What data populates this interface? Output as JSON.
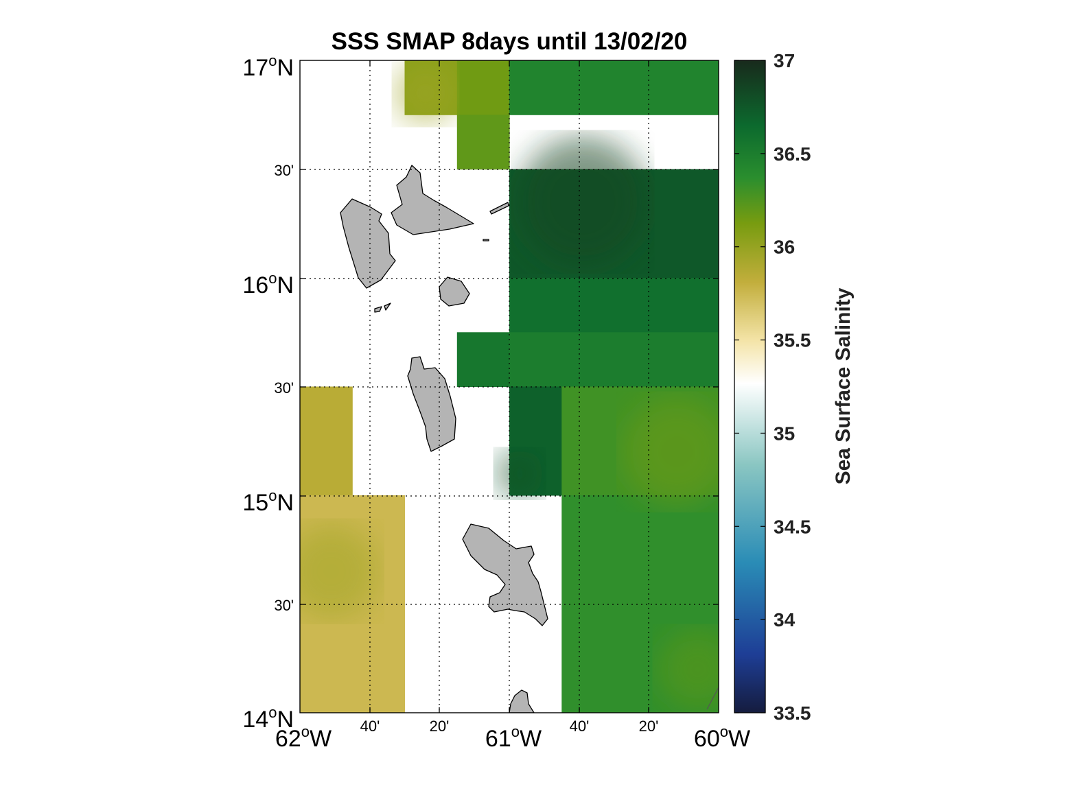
{
  "title": "SSS SMAP 8days until 13/02/20",
  "map": {
    "lon_range": [
      -62,
      -60
    ],
    "lat_range": [
      14,
      17
    ],
    "grid": true,
    "lat_labels": [
      {
        "lat": 17.0,
        "main": "17",
        "sup": "o",
        "suffix": "N",
        "kind": "major"
      },
      {
        "lat": 16.5,
        "text": "30'",
        "kind": "minor"
      },
      {
        "lat": 16.0,
        "main": "16",
        "sup": "o",
        "suffix": "N",
        "kind": "major"
      },
      {
        "lat": 15.5,
        "text": "30'",
        "kind": "minor"
      },
      {
        "lat": 15.0,
        "main": "15",
        "sup": "o",
        "suffix": "N",
        "kind": "major"
      },
      {
        "lat": 14.5,
        "text": "30'",
        "kind": "minor"
      },
      {
        "lat": 14.0,
        "main": "14",
        "sup": "o",
        "suffix": "N",
        "kind": "major"
      }
    ],
    "lon_labels": [
      {
        "lon": -62.0,
        "main": "62",
        "sup": "o",
        "suffix": "W",
        "kind": "major"
      },
      {
        "lon": -61.6667,
        "text": "40'",
        "kind": "minor"
      },
      {
        "lon": -61.3333,
        "text": "20'",
        "kind": "minor"
      },
      {
        "lon": -61.0,
        "main": "61",
        "sup": "o",
        "suffix": "W",
        "kind": "major"
      },
      {
        "lon": -60.6667,
        "text": "40'",
        "kind": "minor"
      },
      {
        "lon": -60.3333,
        "text": "20'",
        "kind": "minor"
      },
      {
        "lon": -60.0,
        "main": "60",
        "sup": "o",
        "suffix": "W",
        "kind": "major"
      }
    ],
    "land_color": "#b4b4b4",
    "no_data_color": "#ffffff"
  },
  "colorbar": {
    "label": "Sea Surface Salinity",
    "min": 33.5,
    "max": 37,
    "ticks": [
      "37",
      "36.5",
      "36",
      "35.5",
      "35",
      "34.5",
      "34",
      "33.5"
    ],
    "colors": [
      "#151c3e",
      "#1e3e96",
      "#2a8cb6",
      "#8ac6c2",
      "#ffffff",
      "#f4e4a8",
      "#c2ae3c",
      "#789c10",
      "#2a8e2e",
      "#0c6a2e",
      "#182a1c"
    ]
  },
  "chart_data": {
    "type": "heatmap",
    "title": "SSS SMAP 8days until 13/02/20",
    "xlabel": "",
    "ylabel": "",
    "x_range": [
      -62,
      -60
    ],
    "y_range": [
      14,
      17
    ],
    "value_label": "Sea Surface Salinity",
    "value_range": [
      33.5,
      37
    ],
    "cells": [
      {
        "lon": [
          -61.5,
          -61.25
        ],
        "lat": [
          16.75,
          17.0
        ],
        "value": 36.05
      },
      {
        "lon": [
          -61.25,
          -61.0
        ],
        "lat": [
          16.75,
          17.0
        ],
        "value": 36.15
      },
      {
        "lon": [
          -61.0,
          -60.0
        ],
        "lat": [
          16.75,
          17.0
        ],
        "value": 36.45
      },
      {
        "lon": [
          -61.25,
          -61.0
        ],
        "lat": [
          16.5,
          16.75
        ],
        "value": 36.2
      },
      {
        "lon": [
          -61.0,
          -60.0
        ],
        "lat": [
          16.0,
          16.5
        ],
        "value": 36.75
      },
      {
        "lon": [
          -61.0,
          -60.0
        ],
        "lat": [
          15.75,
          16.0
        ],
        "value": 36.6
      },
      {
        "lon": [
          -61.25,
          -61.0
        ],
        "lat": [
          15.5,
          15.75
        ],
        "value": 36.55
      },
      {
        "lon": [
          -61.0,
          -60.0
        ],
        "lat": [
          15.5,
          15.75
        ],
        "value": 36.5
      },
      {
        "lon": [
          -61.0,
          -60.75
        ],
        "lat": [
          15.0,
          15.5
        ],
        "value": 36.7
      },
      {
        "lon": [
          -60.75,
          -60.0
        ],
        "lat": [
          15.0,
          15.5
        ],
        "value": 36.3
      },
      {
        "lon": [
          -60.75,
          -60.0
        ],
        "lat": [
          14.0,
          15.0
        ],
        "value": 36.35
      },
      {
        "lon": [
          -62.0,
          -61.75
        ],
        "lat": [
          15.0,
          15.5
        ],
        "value": 35.85
      },
      {
        "lon": [
          -62.0,
          -61.5
        ],
        "lat": [
          14.0,
          15.0
        ],
        "value": 35.75
      }
    ]
  }
}
